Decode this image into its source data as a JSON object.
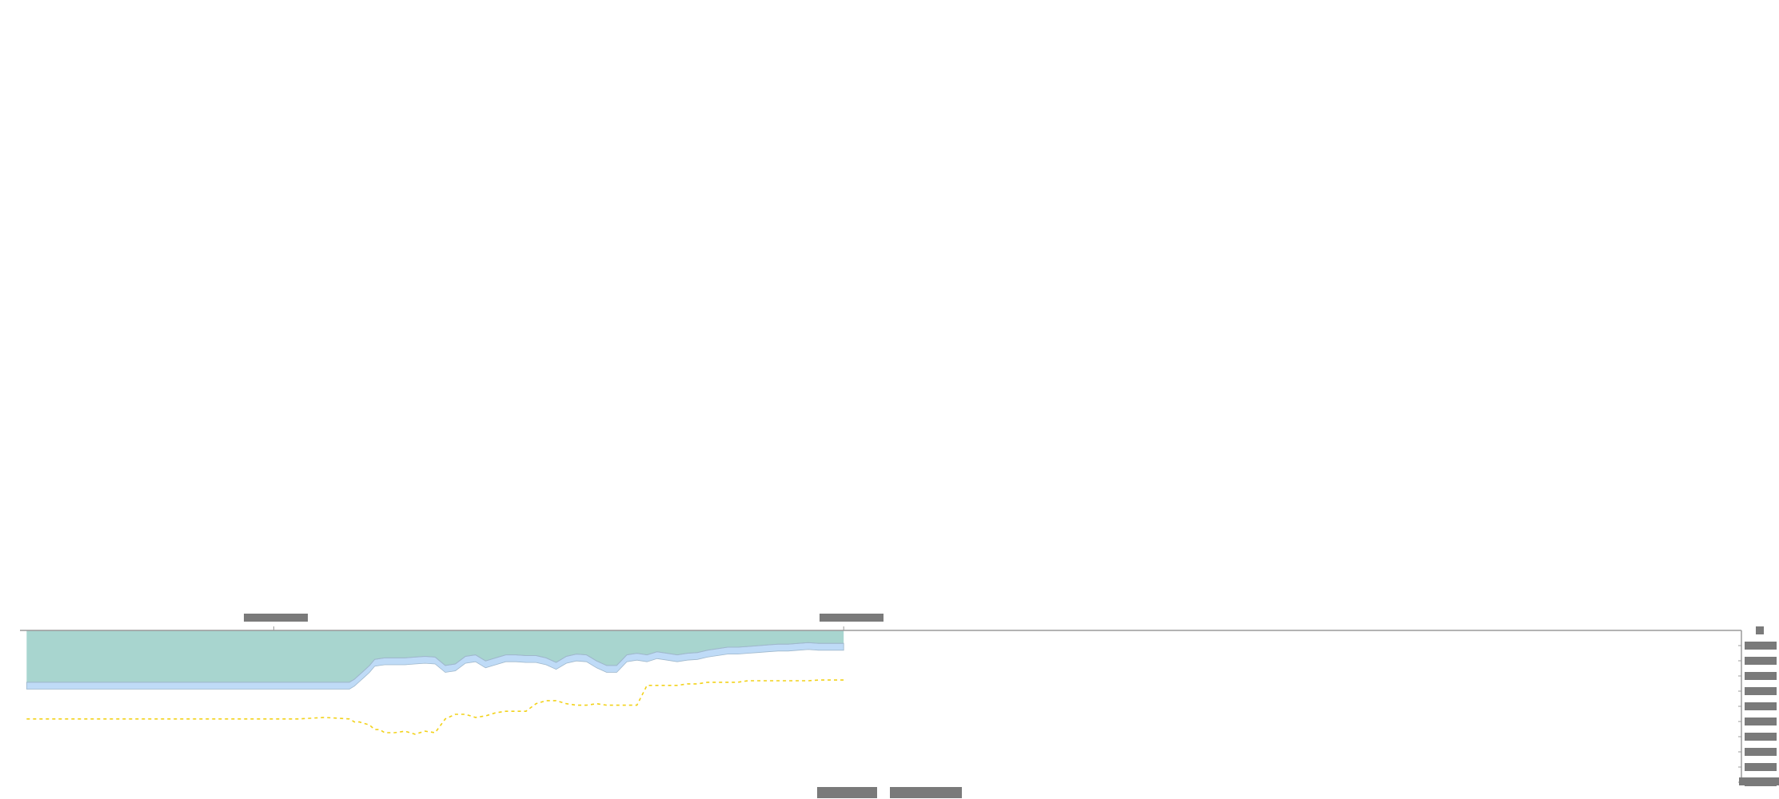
{
  "chart_data": {
    "type": "area",
    "title": "",
    "xlabel": "",
    "ylabel": "",
    "x_ticks": [
      {
        "value": 50,
        "label": ""
      },
      {
        "value": 163,
        "label": ""
      }
    ],
    "y_ticks": [
      {
        "value": 0,
        "label": ""
      },
      {
        "value": 1,
        "label": ""
      },
      {
        "value": 2,
        "label": ""
      },
      {
        "value": 3,
        "label": ""
      },
      {
        "value": 4,
        "label": ""
      },
      {
        "value": 5,
        "label": ""
      },
      {
        "value": 6,
        "label": ""
      },
      {
        "value": 7,
        "label": ""
      },
      {
        "value": 8,
        "label": ""
      },
      {
        "value": 9,
        "label": ""
      }
    ],
    "y_axis_top_label": "",
    "y_axis_bottom_label": "",
    "xlim": [
      0,
      341
    ],
    "ylim": [
      0,
      10
    ],
    "legend": [
      {
        "label": "",
        "color": "#e0e0e0"
      },
      {
        "label": "",
        "color": "#e0e0e0"
      }
    ],
    "colors": {
      "upper_fill": "#a8d5cf",
      "band_fill": "#bfdbf7",
      "band_stroke": "#9fb8cc",
      "dashed_line": "#f2d21a",
      "axis": "#9a9a9a",
      "redacted_label": "#7a7a7a"
    },
    "x": [
      1,
      5,
      10,
      15,
      20,
      25,
      30,
      35,
      40,
      45,
      50,
      55,
      60,
      65,
      66,
      67,
      68,
      69,
      70,
      71,
      72,
      73,
      74,
      76,
      78,
      80,
      82,
      84,
      86,
      88,
      90,
      92,
      94,
      96,
      98,
      100,
      102,
      104,
      106,
      108,
      110,
      112,
      114,
      116,
      118,
      120,
      122,
      124,
      126,
      128,
      130,
      132,
      134,
      136,
      138,
      140,
      142,
      144,
      146,
      148,
      150,
      152,
      154,
      156,
      158,
      160,
      162,
      163
    ],
    "series": [
      {
        "name": "",
        "values": [
          3.1,
          3.1,
          3.1,
          3.1,
          3.1,
          3.1,
          3.1,
          3.1,
          3.1,
          3.1,
          3.1,
          3.1,
          3.1,
          3.1,
          3.1,
          3.1,
          3.1,
          3.1,
          3.1,
          3.1,
          3.1,
          3.1,
          3.1,
          3.1,
          3.1,
          3.1,
          3.1,
          3.1,
          3.1,
          3.1,
          3.1,
          3.1,
          3.1,
          3.1,
          3.1,
          3.1,
          3.1,
          3.1,
          3.1,
          3.1,
          3.1,
          3.1,
          3.1,
          3.1,
          3.1,
          3.1,
          3.1,
          3.1,
          3.1,
          3.1,
          3.1,
          3.1,
          3.1,
          3.1,
          3.1,
          3.1,
          3.1,
          3.1,
          3.1,
          3.1,
          3.1,
          3.1,
          3.1,
          3.1,
          3.1,
          3.1,
          3.1,
          3.1
        ]
      },
      {
        "name": "",
        "values": [
          3.4,
          3.4,
          3.4,
          3.4,
          3.4,
          3.4,
          3.4,
          3.4,
          3.4,
          3.4,
          3.4,
          3.4,
          3.4,
          3.4,
          3.2,
          2.9,
          2.6,
          2.3,
          1.9,
          1.85,
          1.8,
          1.8,
          1.8,
          1.8,
          1.75,
          1.7,
          1.75,
          2.3,
          2.2,
          1.7,
          1.6,
          2.0,
          1.8,
          1.6,
          1.6,
          1.65,
          1.65,
          1.8,
          2.1,
          1.7,
          1.55,
          1.6,
          2.0,
          2.3,
          2.3,
          1.6,
          1.5,
          1.6,
          1.4,
          1.5,
          1.6,
          1.5,
          1.45,
          1.3,
          1.2,
          1.1,
          1.1,
          1.05,
          1.0,
          0.95,
          0.9,
          0.9,
          0.85,
          0.8,
          0.85,
          0.85,
          0.85,
          0.85
        ]
      },
      {
        "name": "",
        "values": [
          5.8,
          5.8,
          5.8,
          5.8,
          5.8,
          5.8,
          5.8,
          5.8,
          5.8,
          5.8,
          5.8,
          5.8,
          5.7,
          5.8,
          6.0,
          6.0,
          6.1,
          6.2,
          6.5,
          6.5,
          6.7,
          6.7,
          6.7,
          6.6,
          6.8,
          6.6,
          6.7,
          5.8,
          5.5,
          5.5,
          5.7,
          5.6,
          5.4,
          5.3,
          5.3,
          5.3,
          4.8,
          4.6,
          4.6,
          4.8,
          4.9,
          4.9,
          4.8,
          4.9,
          4.9,
          4.9,
          4.9,
          3.6,
          3.6,
          3.6,
          3.6,
          3.5,
          3.5,
          3.4,
          3.4,
          3.4,
          3.4,
          3.3,
          3.3,
          3.3,
          3.3,
          3.3,
          3.3,
          3.3,
          3.25,
          3.25,
          3.25,
          3.25
        ]
      }
    ]
  }
}
